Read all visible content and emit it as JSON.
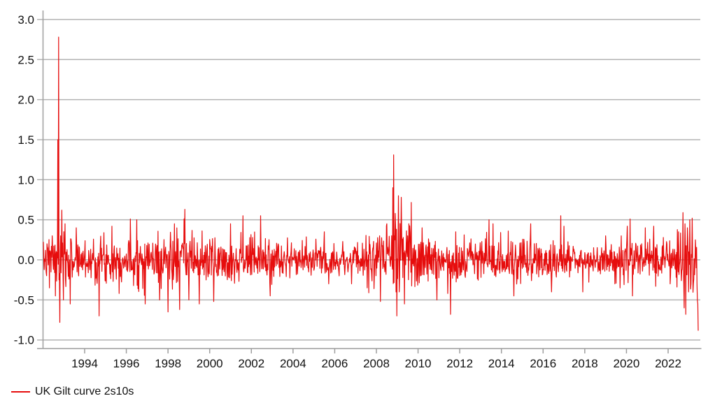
{
  "legend": {
    "label": "UK Gilt curve 2s10s",
    "swatch_color": "#e60d0d"
  },
  "chart_data": {
    "type": "line",
    "title": "",
    "xlabel": "",
    "ylabel": "",
    "grid": true,
    "legend_position": "bottom-left",
    "xlim": [
      1992.02,
      2023.62
    ],
    "ylim": [
      -1.0,
      3.0
    ],
    "yticks": [
      3.0,
      2.5,
      2.0,
      1.5,
      1.0,
      0.5,
      0.0,
      -0.5,
      -1.0
    ],
    "xticks": [
      1994,
      1996,
      1998,
      2000,
      2002,
      2004,
      2006,
      2008,
      2010,
      2012,
      2014,
      2016,
      2018,
      2020,
      2022
    ],
    "grid_color": "#b3b3b3",
    "axis_color": "#9e9e9e",
    "tick_label_color": "#111111",
    "series": [
      {
        "name": "UK Gilt curve 2s10s",
        "color": "#e60d0d",
        "description": "Weekly changes in UK gilt 2s10s curve slope, oscillating around zero",
        "x_start": 1992.02,
        "x_end": 2023.45,
        "points_per_year": 52,
        "seed": 7,
        "volatility_envelope": [
          [
            1992.02,
            1992.7,
            0.13
          ],
          [
            1992.7,
            1993.1,
            0.22
          ],
          [
            1993.1,
            1996.0,
            0.14
          ],
          [
            1996.0,
            1999.3,
            0.17
          ],
          [
            1999.3,
            2003.5,
            0.14
          ],
          [
            2003.5,
            2007.5,
            0.1
          ],
          [
            2007.5,
            2008.6,
            0.16
          ],
          [
            2008.6,
            2009.7,
            0.24
          ],
          [
            2009.7,
            2010.6,
            0.16
          ],
          [
            2010.6,
            2012.3,
            0.14
          ],
          [
            2012.3,
            2016.3,
            0.12
          ],
          [
            2016.3,
            2017.3,
            0.14
          ],
          [
            2017.3,
            2019.8,
            0.1
          ],
          [
            2019.8,
            2020.7,
            0.14
          ],
          [
            2020.7,
            2022.4,
            0.11
          ],
          [
            2022.4,
            2023.45,
            0.2
          ]
        ],
        "anchor_points": [
          [
            1992.02,
            0.22
          ],
          [
            1992.3,
            -0.35
          ],
          [
            1992.45,
            0.3
          ],
          [
            1992.6,
            -0.45
          ],
          [
            1992.71,
            1.5
          ],
          [
            1992.75,
            2.78
          ],
          [
            1992.77,
            -0.25
          ],
          [
            1992.81,
            -0.78
          ],
          [
            1992.85,
            0.3
          ],
          [
            1992.9,
            0.62
          ],
          [
            1992.98,
            -0.5
          ],
          [
            1993.05,
            0.45
          ],
          [
            1993.3,
            -0.55
          ],
          [
            1993.6,
            0.4
          ],
          [
            1994.7,
            -0.7
          ],
          [
            1995.3,
            0.42
          ],
          [
            1996.5,
            0.5
          ],
          [
            1996.9,
            -0.55
          ],
          [
            1997.6,
            -0.5
          ],
          [
            1998.0,
            -0.65
          ],
          [
            1998.3,
            0.45
          ],
          [
            1998.55,
            -0.62
          ],
          [
            1998.8,
            0.63
          ],
          [
            1999.0,
            -0.5
          ],
          [
            1999.5,
            -0.55
          ],
          [
            2000.2,
            -0.52
          ],
          [
            2001.0,
            0.45
          ],
          [
            2001.6,
            0.55
          ],
          [
            2002.45,
            0.55
          ],
          [
            2002.9,
            -0.45
          ],
          [
            2005.5,
            0.35
          ],
          [
            2006.8,
            -0.3
          ],
          [
            2008.2,
            -0.52
          ],
          [
            2008.5,
            0.45
          ],
          [
            2008.79,
            0.9
          ],
          [
            2008.83,
            1.31
          ],
          [
            2008.87,
            0.3
          ],
          [
            2008.94,
            -0.4
          ],
          [
            2008.98,
            -0.7
          ],
          [
            2009.06,
            0.8
          ],
          [
            2009.12,
            -0.2
          ],
          [
            2009.2,
            0.78
          ],
          [
            2009.35,
            -0.55
          ],
          [
            2009.55,
            0.45
          ],
          [
            2010.2,
            0.4
          ],
          [
            2010.9,
            -0.5
          ],
          [
            2011.55,
            -0.68
          ],
          [
            2011.8,
            0.35
          ],
          [
            2013.4,
            0.5
          ],
          [
            2013.6,
            0.45
          ],
          [
            2014.6,
            -0.45
          ],
          [
            2015.4,
            0.45
          ],
          [
            2016.4,
            -0.4
          ],
          [
            2016.85,
            0.55
          ],
          [
            2017.0,
            0.42
          ],
          [
            2017.9,
            -0.4
          ],
          [
            2019.0,
            0.3
          ],
          [
            2019.7,
            -0.35
          ],
          [
            2020.18,
            0.51
          ],
          [
            2020.28,
            -0.45
          ],
          [
            2020.9,
            0.4
          ],
          [
            2021.3,
            0.42
          ],
          [
            2022.1,
            -0.3
          ],
          [
            2022.5,
            0.35
          ],
          [
            2022.72,
            0.59
          ],
          [
            2022.76,
            -0.3
          ],
          [
            2022.8,
            0.45
          ],
          [
            2022.85,
            -0.68
          ],
          [
            2022.92,
            0.4
          ],
          [
            2022.98,
            -0.4
          ],
          [
            2023.04,
            0.5
          ],
          [
            2023.1,
            -0.3
          ],
          [
            2023.15,
            0.52
          ],
          [
            2023.22,
            -0.3
          ],
          [
            2023.3,
            0.25
          ],
          [
            2023.35,
            -0.1
          ],
          [
            2023.39,
            -0.3
          ],
          [
            2023.42,
            -0.55
          ],
          [
            2023.45,
            -0.88
          ]
        ]
      }
    ]
  }
}
